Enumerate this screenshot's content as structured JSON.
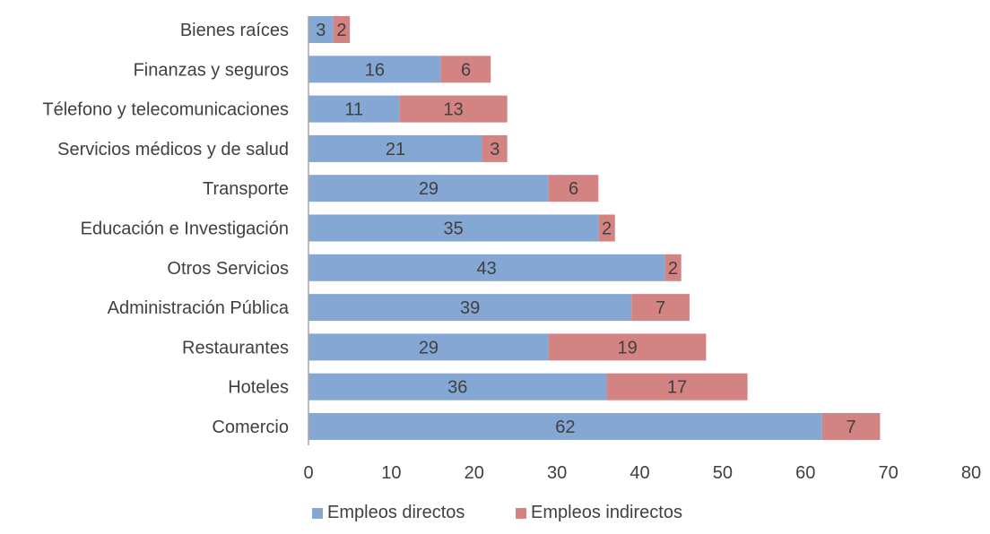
{
  "chart_data": {
    "type": "bar",
    "orientation": "horizontal",
    "stacked": true,
    "categories": [
      "Bienes raíces",
      "Finanzas y seguros",
      "Télefono y telecomunicaciones",
      "Servicios médicos y de salud",
      "Transporte",
      "Educación e Investigación",
      "Otros Servicios",
      "Administración Pública",
      "Restaurantes",
      "Hoteles",
      "Comercio"
    ],
    "series": [
      {
        "name": "Empleos directos",
        "color": "#85A7D3",
        "values": [
          3,
          16,
          11,
          21,
          29,
          35,
          43,
          39,
          29,
          36,
          62
        ]
      },
      {
        "name": "Empleos indirectos",
        "color": "#D48383",
        "values": [
          2,
          6,
          13,
          3,
          6,
          2,
          2,
          7,
          19,
          17,
          7
        ]
      }
    ],
    "title": "",
    "xlabel": "",
    "ylabel": "",
    "xlim": [
      0,
      80
    ],
    "x_ticks": [
      0,
      10,
      20,
      30,
      40,
      50,
      60,
      70,
      80
    ],
    "grid": false,
    "data_labels": true,
    "legend_position": "bottom"
  }
}
